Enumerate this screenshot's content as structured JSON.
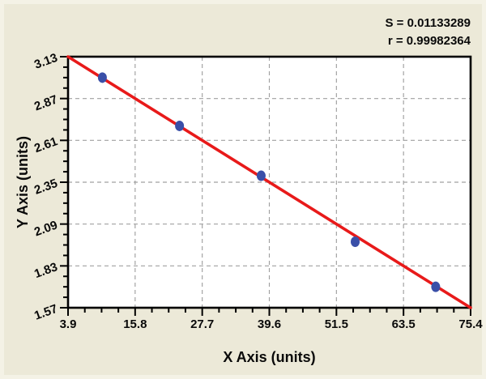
{
  "stats": {
    "s_label": "S = 0.01133289",
    "r_label": "r = 0.99982364"
  },
  "chart_data": {
    "type": "scatter",
    "title": "",
    "xlabel": "X Axis (units)",
    "ylabel": "Y Axis (units)",
    "xlim": [
      3.9,
      75.4
    ],
    "ylim": [
      1.57,
      3.13
    ],
    "x_tick_labels": [
      "3.9",
      "15.8",
      "27.7",
      "39.6",
      "51.5",
      "63.5",
      "75.4"
    ],
    "y_tick_labels": [
      "1.57",
      "1.83",
      "2.09",
      "2.35",
      "2.61",
      "2.87",
      "3.13"
    ],
    "minor_ticks_per_interval": 3,
    "grid": true,
    "points": [
      [
        10.0,
        3.0
      ],
      [
        23.7,
        2.7
      ],
      [
        38.2,
        2.39
      ],
      [
        54.9,
        1.98
      ],
      [
        69.2,
        1.7
      ]
    ],
    "fit_line": {
      "x1": 3.9,
      "y1": 3.13,
      "x2": 75.4,
      "y2": 1.57
    },
    "annotations": [
      "S = 0.01133289",
      "r = 0.99982364"
    ],
    "legend": "none",
    "colors": {
      "page_bg": "#ECE9D8",
      "plot_bg": "#FFFFFF",
      "grid": "#A0A0A0",
      "frame": "#000000",
      "line": "#E81A1A",
      "marker": "#3A4FA8",
      "text": "#0A0A0A"
    }
  }
}
